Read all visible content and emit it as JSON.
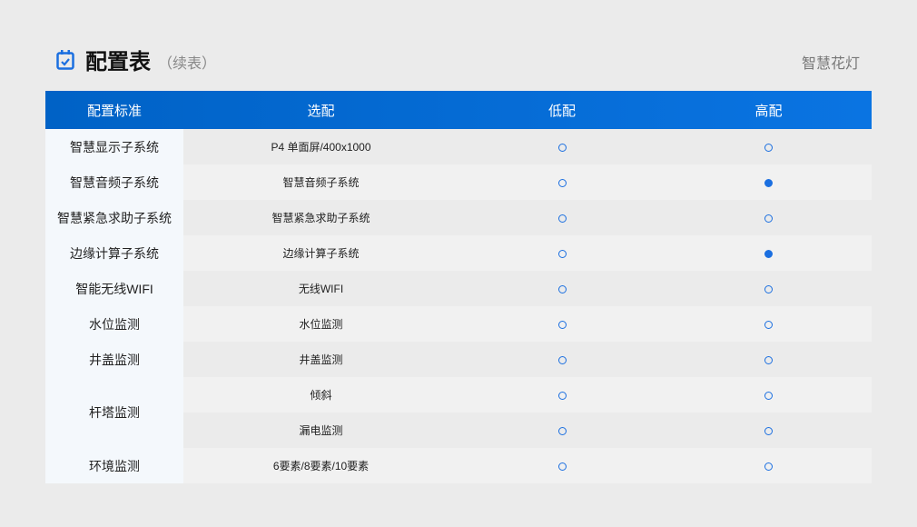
{
  "header": {
    "title": "配置表",
    "subtitle": "（续表）",
    "brand": "智慧花灯",
    "icon": "calendar-check-icon"
  },
  "colors": {
    "accent": "#0a6fe0"
  },
  "table": {
    "columns": [
      "配置标准",
      "选配",
      "低配",
      "高配"
    ],
    "rows": [
      {
        "category": "智慧显示子系统",
        "span": 1,
        "option": "P4 单面屏/400x1000",
        "low": "open",
        "high": "open"
      },
      {
        "category": "智慧音频子系统",
        "span": 1,
        "option": "智慧音频子系统",
        "low": "open",
        "high": "filled"
      },
      {
        "category": "智慧紧急求助子系统",
        "span": 1,
        "option": "智慧紧急求助子系统",
        "low": "open",
        "high": "open"
      },
      {
        "category": "边缘计算子系统",
        "span": 1,
        "option": "边缘计算子系统",
        "low": "open",
        "high": "filled"
      },
      {
        "category": "智能无线WIFI",
        "span": 1,
        "option": "无线WIFI",
        "low": "open",
        "high": "open"
      },
      {
        "category": "水位监测",
        "span": 1,
        "option": "水位监测",
        "low": "open",
        "high": "open"
      },
      {
        "category": "井盖监测",
        "span": 1,
        "option": "井盖监测",
        "low": "open",
        "high": "open"
      },
      {
        "category": "杆塔监测",
        "span": 2,
        "option": "倾斜",
        "low": "open",
        "high": "open"
      },
      {
        "category": null,
        "option": "漏电监测",
        "low": "open",
        "high": "open"
      },
      {
        "category": "环境监测",
        "span": 1,
        "option": "6要素/8要素/10要素",
        "low": "open",
        "high": "open"
      }
    ]
  }
}
